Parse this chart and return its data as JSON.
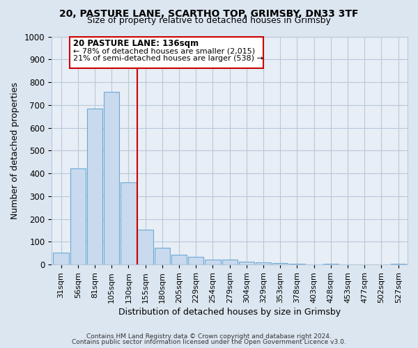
{
  "title1": "20, PASTURE LANE, SCARTHO TOP, GRIMSBY, DN33 3TF",
  "title2": "Size of property relative to detached houses in Grimsby",
  "xlabel": "Distribution of detached houses by size in Grimsby",
  "ylabel": "Number of detached properties",
  "bar_labels": [
    "31sqm",
    "56sqm",
    "81sqm",
    "105sqm",
    "130sqm",
    "155sqm",
    "180sqm",
    "205sqm",
    "229sqm",
    "254sqm",
    "279sqm",
    "304sqm",
    "329sqm",
    "353sqm",
    "378sqm",
    "403sqm",
    "428sqm",
    "453sqm",
    "477sqm",
    "502sqm",
    "527sqm"
  ],
  "bar_values": [
    52,
    422,
    685,
    757,
    362,
    152,
    75,
    42,
    35,
    22,
    22,
    13,
    10,
    7,
    5,
    0,
    5,
    0,
    0,
    0,
    5
  ],
  "bar_color": "#c9d9ee",
  "bar_edge_color": "#6aaad4",
  "vline_x": 4.5,
  "vline_color": "#cc0000",
  "ylim": [
    0,
    1000
  ],
  "yticks": [
    0,
    100,
    200,
    300,
    400,
    500,
    600,
    700,
    800,
    900,
    1000
  ],
  "annotation_title": "20 PASTURE LANE: 136sqm",
  "annotation_line1": "← 78% of detached houses are smaller (2,015)",
  "annotation_line2": "21% of semi-detached houses are larger (538) →",
  "annotation_box_color": "#cc0000",
  "footer1": "Contains HM Land Registry data © Crown copyright and database right 2024.",
  "footer2": "Contains public sector information licensed under the Open Government Licence v3.0.",
  "bg_color": "#dce6f0",
  "plot_bg_color": "#e8eef5",
  "grid_color": "#b8c8dc"
}
